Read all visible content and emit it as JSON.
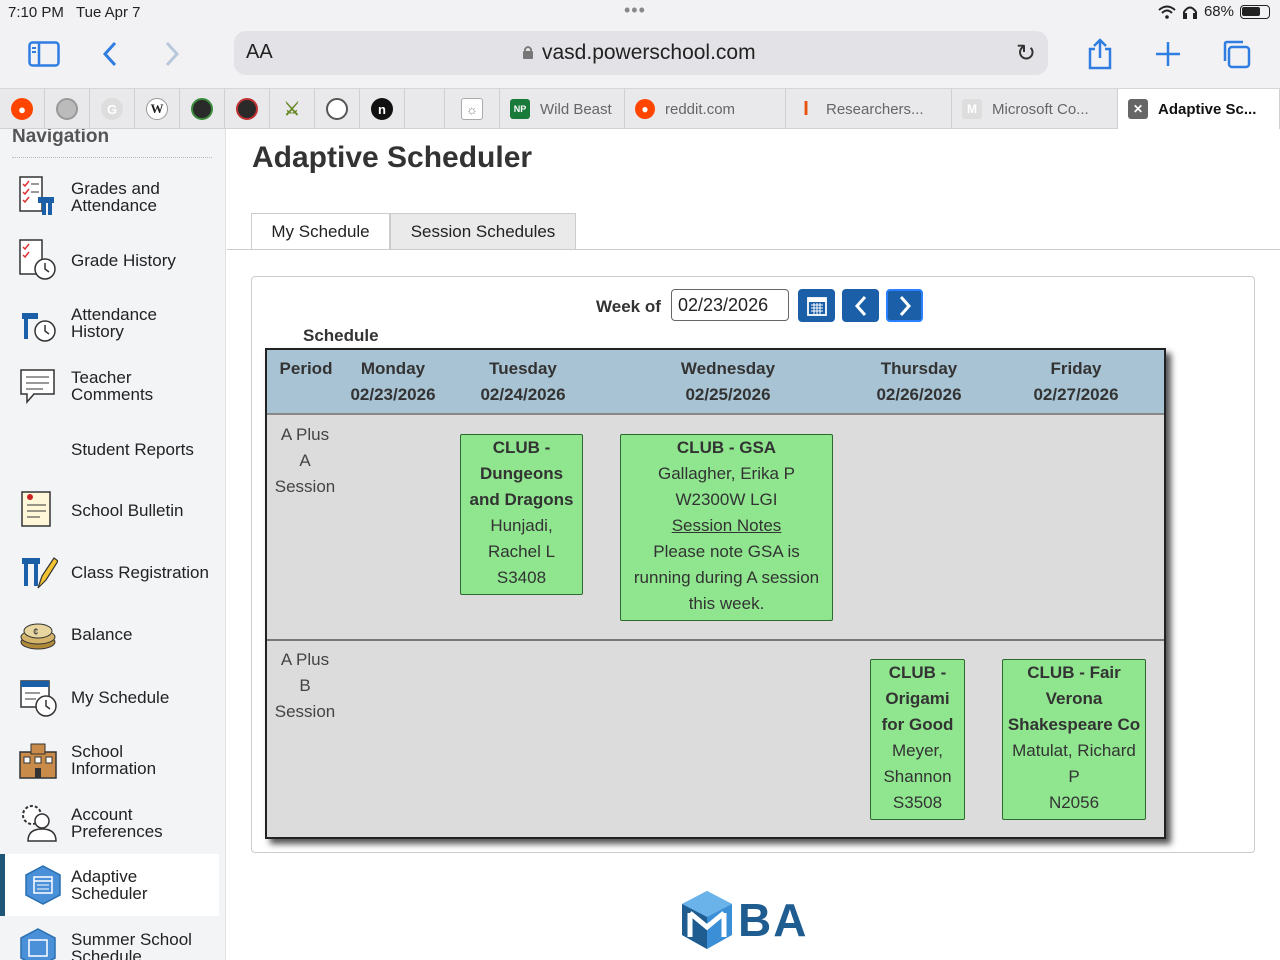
{
  "status": {
    "time": "7:10 PM",
    "date": "Tue Apr 7",
    "battery": "68%"
  },
  "browser": {
    "aa_label": "AA",
    "url": "vasd.powerschool.com",
    "tabs": [
      {
        "label": "Wild Beast",
        "icon": "npca-icon"
      },
      {
        "label": "reddit.com",
        "icon": "reddit-icon"
      },
      {
        "label": "Researchers...",
        "icon": "illinois-icon"
      },
      {
        "label": "Microsoft Co...",
        "icon": "microsoft-icon"
      },
      {
        "label": "Adaptive Sc...",
        "icon": "close-icon"
      }
    ],
    "fav_labels": {
      "g": "G",
      "w": "W",
      "n": "n"
    }
  },
  "sidebar": {
    "title": "Navigation",
    "items": [
      {
        "label": "Grades and Attendance"
      },
      {
        "label": "Grade History"
      },
      {
        "label": "Attendance History"
      },
      {
        "label": "Teacher Comments"
      },
      {
        "label": "Student Reports"
      },
      {
        "label": "School Bulletin"
      },
      {
        "label": "Class Registration"
      },
      {
        "label": "Balance"
      },
      {
        "label": "My Schedule"
      },
      {
        "label": "School Information"
      },
      {
        "label": "Account Preferences"
      },
      {
        "label": "Adaptive Scheduler"
      },
      {
        "label": "Summer School Schedule"
      }
    ]
  },
  "page": {
    "title": "Adaptive Scheduler",
    "tabs": {
      "my_schedule": "My Schedule",
      "session_schedules": "Session Schedules"
    },
    "week_label": "Week of",
    "week_value": "02/23/2026",
    "schedule_label": "Schedule"
  },
  "schedule": {
    "headers": {
      "period": "Period",
      "days": [
        {
          "day": "Monday",
          "date": "02/23/2026"
        },
        {
          "day": "Tuesday",
          "date": "02/24/2026"
        },
        {
          "day": "Wednesday",
          "date": "02/25/2026"
        },
        {
          "day": "Thursday",
          "date": "02/26/2026"
        },
        {
          "day": "Friday",
          "date": "02/27/2026"
        }
      ]
    },
    "rows": [
      {
        "period": [
          "A Plus",
          "A",
          "Session"
        ]
      },
      {
        "period": [
          "A Plus",
          "B",
          "Session"
        ]
      }
    ],
    "cards": {
      "dnd": {
        "title": [
          "CLUB -",
          "Dungeons",
          "and Dragons"
        ],
        "teacher": [
          "Hunjadi,",
          "Rachel L"
        ],
        "room": "S3408"
      },
      "gsa": {
        "title": "CLUB - GSA",
        "teacher": "Gallagher, Erika P",
        "room": "W2300W LGI",
        "link": "Session Notes",
        "note": [
          "Please note GSA is",
          "running during A session",
          "this week."
        ]
      },
      "origami": {
        "title": [
          "CLUB -",
          "Origami",
          "for Good"
        ],
        "teacher": [
          "Meyer,",
          "Shannon"
        ],
        "room": "S3508"
      },
      "shakespeare": {
        "title": [
          "CLUB - Fair",
          "Verona",
          "Shakespeare Co"
        ],
        "teacher": [
          "Matulat, Richard",
          "P"
        ],
        "room": "N2056"
      }
    }
  },
  "footer": {
    "logo_text": "BA"
  },
  "colors": {
    "accent": "#1a5fa8",
    "card": "#8fe68f",
    "header": "#a8c3d3"
  }
}
